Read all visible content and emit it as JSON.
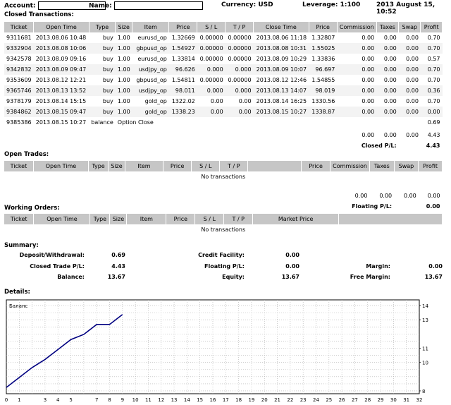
{
  "header": {
    "account_label": "Account:",
    "name_label": "Name:",
    "currency": "Currency: USD",
    "leverage": "Leverage: 1:100",
    "datetime": "2013 August 15, 10:52"
  },
  "closed": {
    "title": "Closed Transactions:",
    "columns": [
      "Ticket",
      "Open Time",
      "Type",
      "Size",
      "Item",
      "Price",
      "S / L",
      "T / P",
      "Close Time",
      "Price",
      "Commission",
      "Taxes",
      "Swap",
      "Profit"
    ],
    "rows": [
      [
        "9311681",
        "2013.08.06 10:48",
        "buy",
        "1.00",
        "eurusd_op",
        "1.32669",
        "0.00000",
        "0.00000",
        "2013.08.06 11:18",
        "1.32807",
        "0.00",
        "0.00",
        "0.00",
        "0.70"
      ],
      [
        "9332904",
        "2013.08.08 10:06",
        "buy",
        "1.00",
        "gbpusd_op",
        "1.54927",
        "0.00000",
        "0.00000",
        "2013.08.08 10:31",
        "1.55025",
        "0.00",
        "0.00",
        "0.00",
        "0.70"
      ],
      [
        "9342578",
        "2013.08.09 09:16",
        "buy",
        "1.00",
        "eurusd_op",
        "1.33814",
        "0.00000",
        "0.00000",
        "2013.08.09 10:29",
        "1.33836",
        "0.00",
        "0.00",
        "0.00",
        "0.57"
      ],
      [
        "9342832",
        "2013.08.09 09:47",
        "buy",
        "1.00",
        "usdjpy_op",
        "96.626",
        "0.000",
        "0.000",
        "2013.08.09 10:07",
        "96.697",
        "0.00",
        "0.00",
        "0.00",
        "0.70"
      ],
      [
        "9353609",
        "2013.08.12 12:21",
        "buy",
        "1.00",
        "gbpusd_op",
        "1.54811",
        "0.00000",
        "0.00000",
        "2013.08.12 12:46",
        "1.54855",
        "0.00",
        "0.00",
        "0.00",
        "0.70"
      ],
      [
        "9365746",
        "2013.08.13 13:52",
        "buy",
        "1.00",
        "usdjpy_op",
        "98.011",
        "0.000",
        "0.000",
        "2013.08.13 14:07",
        "98.019",
        "0.00",
        "0.00",
        "0.00",
        "0.36"
      ],
      [
        "9378179",
        "2013.08.14 15:15",
        "buy",
        "1.00",
        "gold_op",
        "1322.02",
        "0.00",
        "0.00",
        "2013.08.14 16:25",
        "1330.56",
        "0.00",
        "0.00",
        "0.00",
        "0.70"
      ],
      [
        "9384862",
        "2013.08.15 09:47",
        "buy",
        "1.00",
        "gold_op",
        "1338.23",
        "0.00",
        "0.00",
        "2013.08.15 10:27",
        "1338.87",
        "0.00",
        "0.00",
        "0.00",
        "0.00"
      ]
    ],
    "balance_row": {
      "ticket": "9385386",
      "time": "2013.08.15 10:27",
      "type": "balance",
      "comment": "Option Close",
      "profit": "0.69"
    },
    "totals": {
      "commission": "0.00",
      "taxes": "0.00",
      "swap": "0.00",
      "profit": "4.43"
    },
    "pl_label": "Closed P/L:",
    "pl_value": "4.43"
  },
  "open": {
    "title": "Open Trades:",
    "columns": [
      "Ticket",
      "Open Time",
      "Type",
      "Size",
      "Item",
      "Price",
      "S / L",
      "T / P",
      "",
      "Price",
      "Commission",
      "Taxes",
      "Swap",
      "Profit"
    ],
    "empty": "No transactions",
    "totals": {
      "commission": "0.00",
      "taxes": "0.00",
      "swap": "0.00",
      "profit": "0.00"
    },
    "pl_label": "Floating P/L:",
    "pl_value": "0.00"
  },
  "working": {
    "title": "Working Orders:",
    "columns": [
      "Ticket",
      "Open Time",
      "Type",
      "Size",
      "Item",
      "Price",
      "S / L",
      "T / P",
      "Market Price"
    ],
    "empty": "No transactions"
  },
  "summary": {
    "title": "Summary:",
    "deposit_label": "Deposit/Withdrawal:",
    "deposit": "0.69",
    "credit_label": "Credit Facility:",
    "credit": "0.00",
    "closed_label": "Closed Trade P/L:",
    "closed": "4.43",
    "floating_label": "Floating P/L:",
    "floating": "0.00",
    "margin_label": "Margin:",
    "margin": "0.00",
    "balance_label": "Balance:",
    "balance": "13.67",
    "equity_label": "Equity:",
    "equity": "13.67",
    "free_margin_label": "Free Margin:",
    "free_margin": "13.67"
  },
  "details": {
    "title": "Details:"
  },
  "chart_data": {
    "type": "line",
    "title": "Баланс",
    "x": [
      0,
      1,
      2,
      3,
      4,
      5,
      6,
      7,
      8,
      9
    ],
    "series": [
      {
        "values": [
          8.24,
          8.94,
          9.64,
          10.21,
          10.91,
          11.61,
          11.97,
          12.67,
          12.67,
          13.37
        ]
      }
    ],
    "xticks": [
      0,
      1,
      3,
      4,
      5,
      7,
      8,
      9,
      10,
      11,
      12,
      13,
      14,
      15,
      16,
      17,
      18,
      19,
      20,
      21,
      22,
      23,
      24,
      25,
      26,
      27,
      28,
      29,
      30,
      31,
      32
    ],
    "yticks": [
      8,
      10,
      11,
      13,
      14
    ],
    "xlim": [
      0,
      32
    ],
    "ylim": [
      7.8,
      14.4
    ],
    "grid": true,
    "line_color": "#000080"
  }
}
